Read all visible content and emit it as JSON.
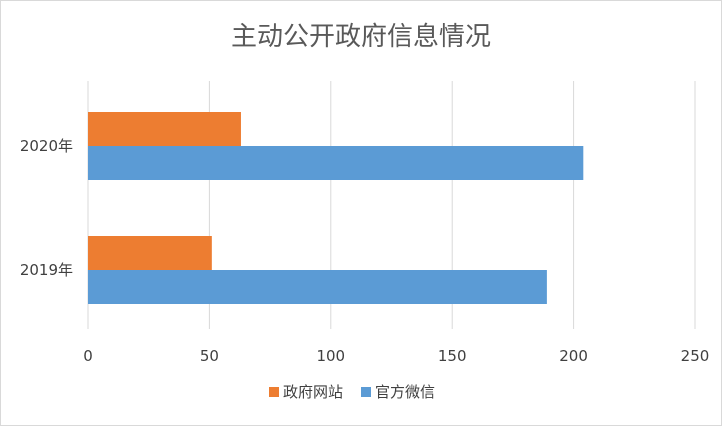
{
  "chart_data": {
    "type": "bar",
    "orientation": "horizontal",
    "title": "主动公开政府信息情况",
    "categories": [
      "2020年",
      "2019年"
    ],
    "series": [
      {
        "name": "政府网站",
        "values": [
          63,
          51
        ],
        "color": "#ED7D31"
      },
      {
        "name": "官方微信",
        "values": [
          204,
          189
        ],
        "color": "#5B9BD5"
      }
    ],
    "xlim": [
      0,
      250
    ],
    "xticks": [
      "0",
      "50",
      "100",
      "150",
      "200",
      "250"
    ],
    "grid": true,
    "legend_position": "bottom"
  }
}
